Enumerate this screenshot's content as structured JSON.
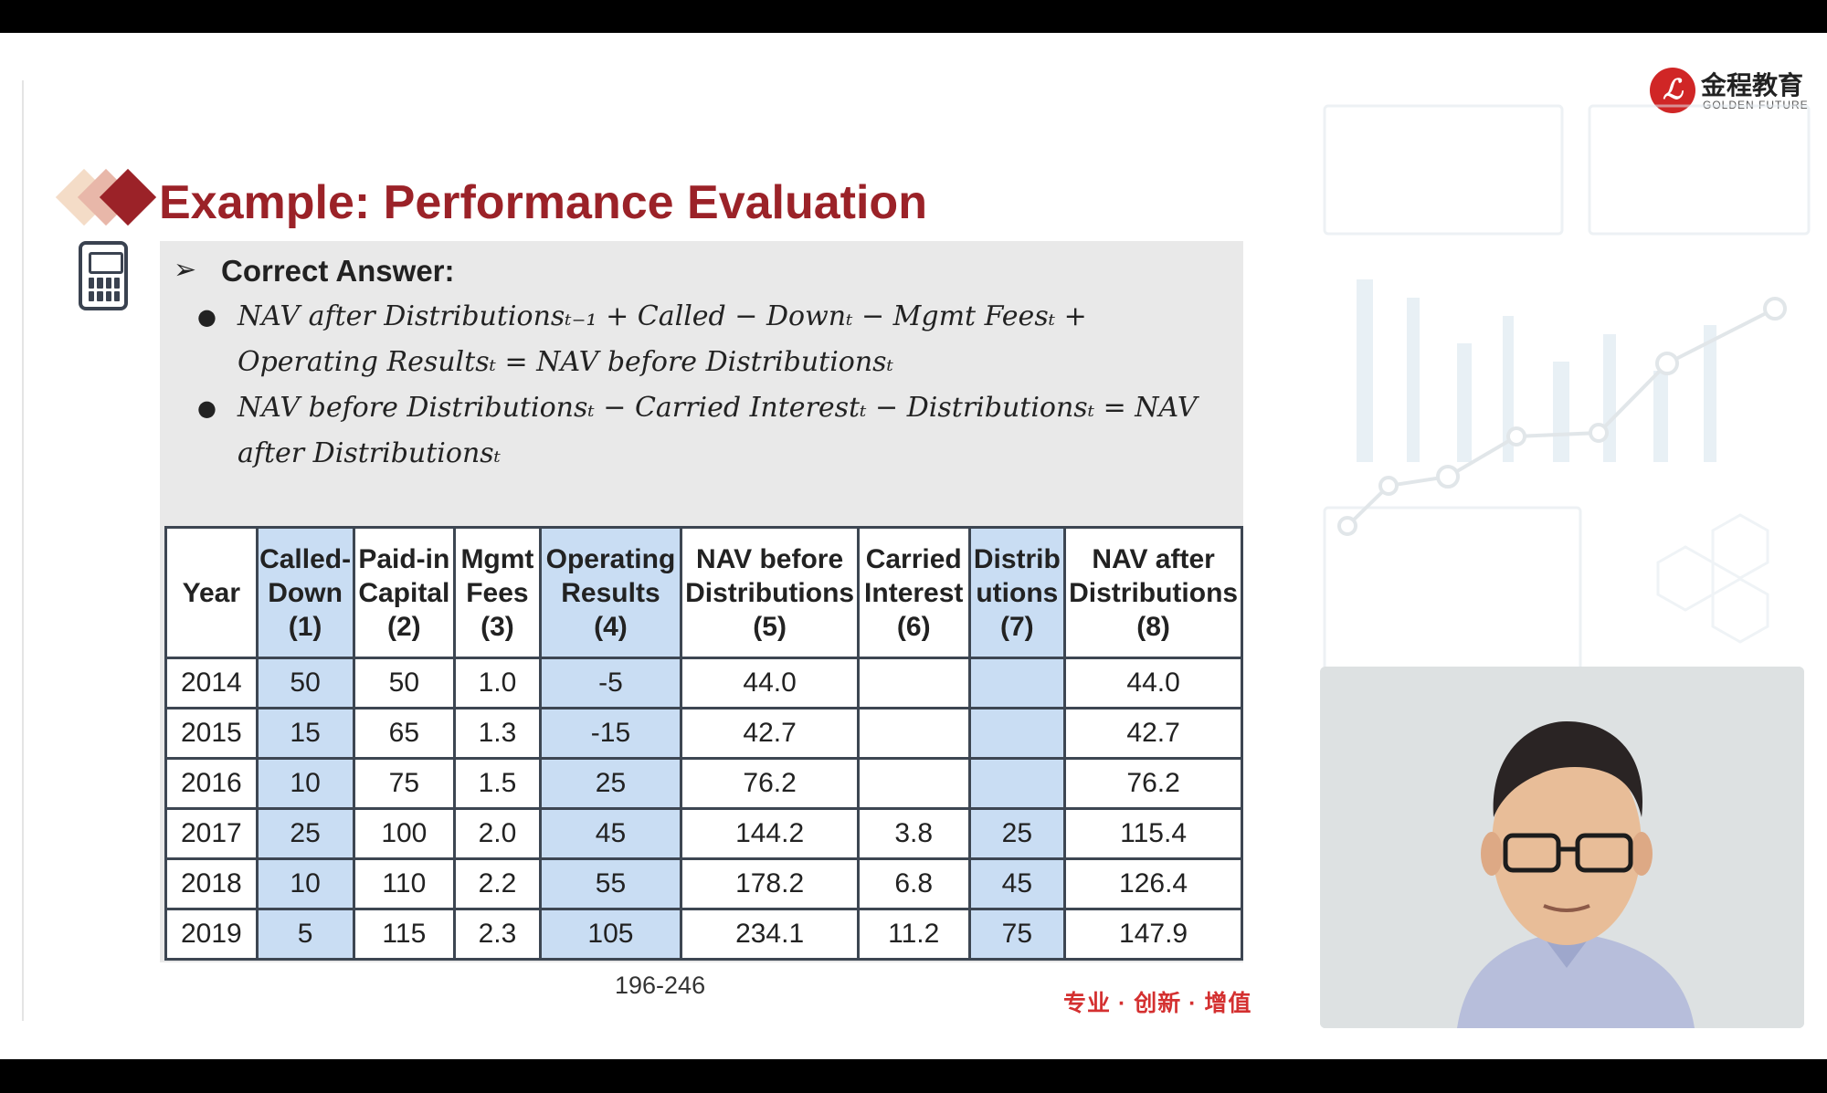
{
  "slide": {
    "title": "Example: Performance Evaluation",
    "answer_label": "Correct Answer:",
    "formula1": "NAV after Distributionsₜ₋₁ + Called − Downₜ − Mgmt Feesₜ + Operating Resultsₜ = NAV before Distributionsₜ",
    "formula2": "NAV before Distributionsₜ − Carried Interestₜ − Distributionsₜ = NAV after Distributionsₜ",
    "page_number": "196-246",
    "slogan": "专业 · 创新 · 增值"
  },
  "logo": {
    "name_cn": "金程教育",
    "name_en": "GOLDEN FUTURE",
    "mark": "ℒ"
  },
  "table": {
    "headers": [
      [
        "Year"
      ],
      [
        "Called-",
        "Down",
        "(1)"
      ],
      [
        "Paid-in",
        "Capital",
        "(2)"
      ],
      [
        "Mgmt",
        "Fees",
        "(3)"
      ],
      [
        "Operating",
        "Results",
        "(4)"
      ],
      [
        "NAV before",
        "Distributions",
        "(5)"
      ],
      [
        "Carried",
        "Interest",
        "(6)"
      ],
      [
        "Distrib",
        "utions",
        "(7)"
      ],
      [
        "NAV after",
        "Distributions",
        "(8)"
      ]
    ],
    "highlight_columns": [
      1,
      4,
      7
    ],
    "highlight_color": "#c9ddf3",
    "rows": [
      [
        "2014",
        "50",
        "50",
        "1.0",
        "-5",
        "44.0",
        "",
        "",
        "44.0"
      ],
      [
        "2015",
        "15",
        "65",
        "1.3",
        "-15",
        "42.7",
        "",
        "",
        "42.7"
      ],
      [
        "2016",
        "10",
        "75",
        "1.5",
        "25",
        "76.2",
        "",
        "",
        "76.2"
      ],
      [
        "2017",
        "25",
        "100",
        "2.0",
        "45",
        "144.2",
        "3.8",
        "25",
        "115.4"
      ],
      [
        "2018",
        "10",
        "110",
        "2.2",
        "55",
        "178.2",
        "6.8",
        "45",
        "126.4"
      ],
      [
        "2019",
        "5",
        "115",
        "2.3",
        "105",
        "234.1",
        "11.2",
        "75",
        "147.9"
      ]
    ]
  },
  "colors": {
    "title_red": "#9b2228",
    "slogan_red": "#d43030",
    "panel_gray": "#e9e9e9"
  }
}
